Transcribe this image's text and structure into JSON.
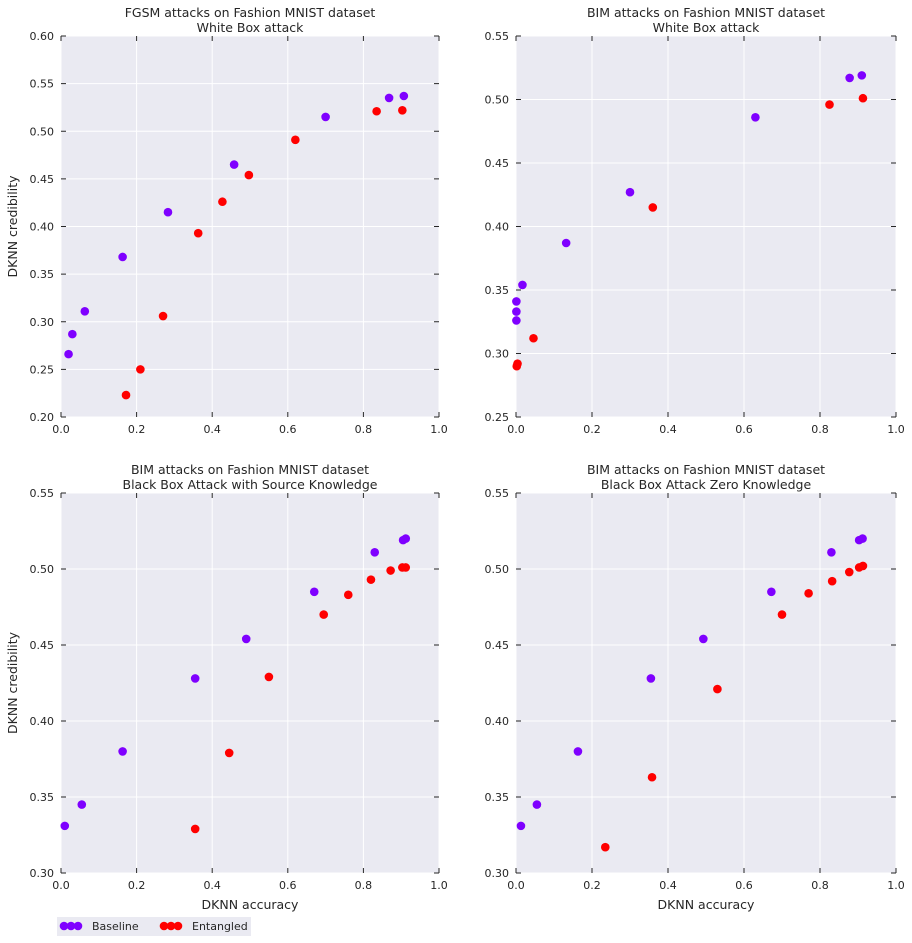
{
  "colors": {
    "baseline": "#7f00ff",
    "entangled": "#ff0000",
    "panel_bg": "#eaeaf2",
    "grid": "#ffffff"
  },
  "legend": {
    "placement": "bottom-left",
    "items": [
      {
        "label": "Baseline",
        "color": "#7f00ff"
      },
      {
        "label": "Entangled",
        "color": "#ff0000"
      }
    ]
  },
  "chart_data": [
    {
      "type": "scatter",
      "title": "FGSM attacks on Fashion MNIST dataset",
      "subtitle": "White Box attack",
      "xlabel": "",
      "ylabel": "DKNN credibility",
      "xlim": [
        0,
        1.0
      ],
      "ylim": [
        0.2,
        0.6
      ],
      "xticks": [
        "0.0",
        "0.2",
        "0.4",
        "0.6",
        "0.8",
        "1.0"
      ],
      "yticks": [
        "0.20",
        "0.25",
        "0.30",
        "0.35",
        "0.40",
        "0.45",
        "0.50",
        "0.55",
        "0.60"
      ],
      "grid": true,
      "series": [
        {
          "name": "Baseline",
          "points": [
            [
              0.02,
              0.266
            ],
            [
              0.03,
              0.287
            ],
            [
              0.063,
              0.311
            ],
            [
              0.163,
              0.368
            ],
            [
              0.283,
              0.415
            ],
            [
              0.458,
              0.465
            ],
            [
              0.7,
              0.515
            ],
            [
              0.868,
              0.535
            ],
            [
              0.907,
              0.537
            ]
          ]
        },
        {
          "name": "Entangled",
          "points": [
            [
              0.172,
              0.223
            ],
            [
              0.21,
              0.25
            ],
            [
              0.27,
              0.306
            ],
            [
              0.363,
              0.393
            ],
            [
              0.427,
              0.426
            ],
            [
              0.497,
              0.454
            ],
            [
              0.62,
              0.491
            ],
            [
              0.835,
              0.521
            ],
            [
              0.903,
              0.522
            ]
          ]
        }
      ]
    },
    {
      "type": "scatter",
      "title": "BIM attacks on Fashion MNIST dataset",
      "subtitle": "White Box attack",
      "xlabel": "",
      "ylabel": "",
      "xlim": [
        0,
        1.0
      ],
      "ylim": [
        0.25,
        0.55
      ],
      "xticks": [
        "0.0",
        "0.2",
        "0.4",
        "0.6",
        "0.8",
        "1.0"
      ],
      "yticks": [
        "0.25",
        "0.30",
        "0.35",
        "0.40",
        "0.45",
        "0.50",
        "0.55"
      ],
      "grid": true,
      "series": [
        {
          "name": "Baseline",
          "points": [
            [
              0.001,
              0.326
            ],
            [
              0.001,
              0.333
            ],
            [
              0.001,
              0.341
            ],
            [
              0.017,
              0.354
            ],
            [
              0.132,
              0.387
            ],
            [
              0.3,
              0.427
            ],
            [
              0.63,
              0.486
            ],
            [
              0.878,
              0.517
            ],
            [
              0.91,
              0.519
            ]
          ]
        },
        {
          "name": "Entangled",
          "points": [
            [
              0.002,
              0.29
            ],
            [
              0.004,
              0.292
            ],
            [
              0.046,
              0.312
            ],
            [
              0.36,
              0.415
            ],
            [
              0.825,
              0.496
            ],
            [
              0.913,
              0.501
            ]
          ]
        }
      ]
    },
    {
      "type": "scatter",
      "title": "BIM attacks on Fashion MNIST dataset",
      "subtitle": "Black Box Attack with Source Knowledge",
      "xlabel": "DKNN accuracy",
      "ylabel": "DKNN credibility",
      "xlim": [
        0,
        1.0
      ],
      "ylim": [
        0.3,
        0.55
      ],
      "xticks": [
        "0.0",
        "0.2",
        "0.4",
        "0.6",
        "0.8",
        "1.0"
      ],
      "yticks": [
        "0.30",
        "0.35",
        "0.40",
        "0.45",
        "0.50",
        "0.55"
      ],
      "grid": true,
      "series": [
        {
          "name": "Baseline",
          "points": [
            [
              0.01,
              0.331
            ],
            [
              0.055,
              0.345
            ],
            [
              0.163,
              0.38
            ],
            [
              0.355,
              0.428
            ],
            [
              0.49,
              0.454
            ],
            [
              0.67,
              0.485
            ],
            [
              0.83,
              0.511
            ],
            [
              0.905,
              0.519
            ],
            [
              0.912,
              0.52
            ]
          ]
        },
        {
          "name": "Entangled",
          "points": [
            [
              0.355,
              0.329
            ],
            [
              0.445,
              0.379
            ],
            [
              0.55,
              0.429
            ],
            [
              0.695,
              0.47
            ],
            [
              0.76,
              0.483
            ],
            [
              0.82,
              0.493
            ],
            [
              0.872,
              0.499
            ],
            [
              0.903,
              0.501
            ],
            [
              0.912,
              0.501
            ]
          ]
        }
      ]
    },
    {
      "type": "scatter",
      "title": "BIM attacks on Fashion MNIST dataset",
      "subtitle": "Black Box Attack Zero Knowledge",
      "xlabel": "DKNN accuracy",
      "ylabel": "",
      "xlim": [
        0,
        1.0
      ],
      "ylim": [
        0.3,
        0.55
      ],
      "xticks": [
        "0.0",
        "0.2",
        "0.4",
        "0.6",
        "0.8",
        "1.0"
      ],
      "yticks": [
        "0.30",
        "0.35",
        "0.40",
        "0.45",
        "0.50",
        "0.55"
      ],
      "grid": true,
      "series": [
        {
          "name": "Baseline",
          "points": [
            [
              0.013,
              0.331
            ],
            [
              0.055,
              0.345
            ],
            [
              0.163,
              0.38
            ],
            [
              0.355,
              0.428
            ],
            [
              0.493,
              0.454
            ],
            [
              0.672,
              0.485
            ],
            [
              0.83,
              0.511
            ],
            [
              0.903,
              0.519
            ],
            [
              0.912,
              0.52
            ]
          ]
        },
        {
          "name": "Entangled",
          "points": [
            [
              0.235,
              0.317
            ],
            [
              0.358,
              0.363
            ],
            [
              0.53,
              0.421
            ],
            [
              0.7,
              0.47
            ],
            [
              0.77,
              0.484
            ],
            [
              0.832,
              0.492
            ],
            [
              0.877,
              0.498
            ],
            [
              0.903,
              0.501
            ],
            [
              0.913,
              0.502
            ]
          ]
        }
      ]
    }
  ]
}
